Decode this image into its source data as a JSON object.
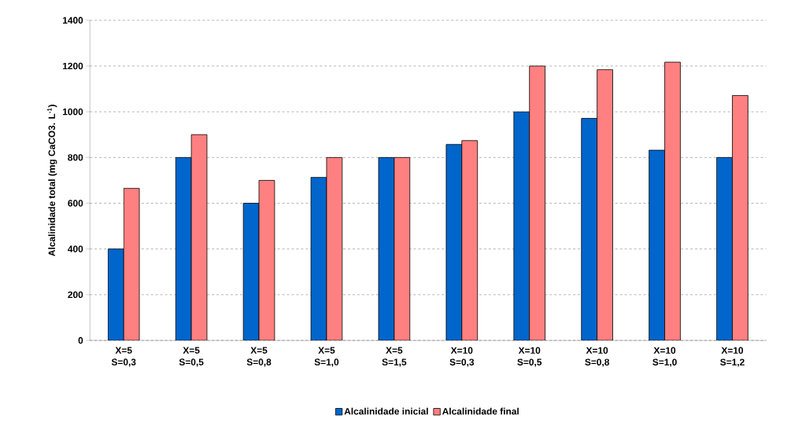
{
  "chart_data": {
    "type": "bar",
    "ylabel": "Alcalinidade total (mg CaCO3. L$^{-1}$)",
    "categories": [
      "X=5 S=0,3",
      "X=5 S=0,5",
      "X=5 S=0,8",
      "X=5 S=1,0",
      "X=5 S=1,5",
      "X=10 S=0,3",
      "X=10 S=0,5",
      "X=10 S=0,8",
      "X=10 S=1,0",
      "X=10 S=1,2"
    ],
    "series": [
      {
        "name": "Alcalinidade inicial",
        "color": "#0066cc",
        "values": [
          400,
          800,
          600,
          713,
          800,
          857,
          1000,
          971,
          832,
          800
        ]
      },
      {
        "name": "Alcalinidade final",
        "color": "#ff8080",
        "values": [
          665,
          900,
          700,
          800,
          800,
          874,
          1200,
          1184,
          1217,
          1071
        ]
      }
    ],
    "ylim": [
      0,
      1400
    ],
    "yticks": [
      0,
      200,
      400,
      600,
      800,
      1000,
      1200,
      1400
    ],
    "grid": "y",
    "legend": "bottom"
  }
}
